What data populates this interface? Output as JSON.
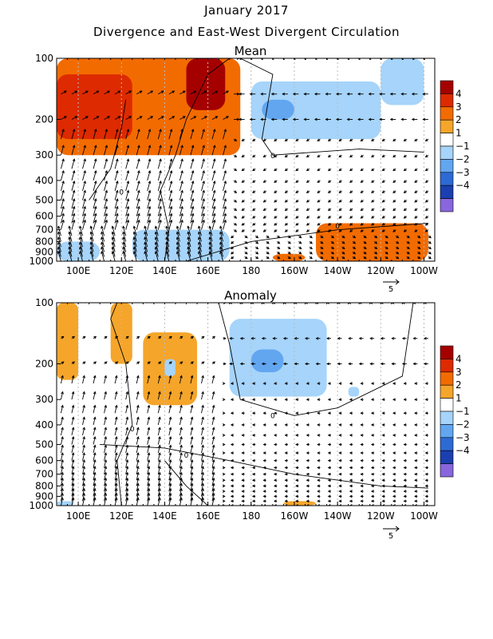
{
  "title": "January 2017",
  "subtitle": "Divergence and East-West Divergent Circulation",
  "colorbar": {
    "ticks": [
      "4",
      "3",
      "2",
      "1",
      "−1",
      "−2",
      "−3",
      "−4"
    ],
    "colors": [
      "#a50000",
      "#dd2a00",
      "#f26b00",
      "#f5a52a",
      "#ffffff",
      "#a6d4fa",
      "#62a6f0",
      "#2d6ad4",
      "#1b3fb0",
      "#8866dd"
    ]
  },
  "chart_data": [
    {
      "type": "heatmap",
      "title": "Mean",
      "x_ticks": [
        "100E",
        "120E",
        "140E",
        "160E",
        "180",
        "160W",
        "140W",
        "120W",
        "100W"
      ],
      "y_ticks": [
        "100",
        "200",
        "300",
        "400",
        "500",
        "600",
        "700",
        "800",
        "900",
        "1000"
      ],
      "x_range": [
        90,
        265
      ],
      "y_range": [
        1000,
        100
      ],
      "y_scale": "log-pressure",
      "reference_vector": "5",
      "contour_labels": [
        "0",
        "0",
        "0"
      ],
      "regions": [
        {
          "lon": [
            90,
            175
          ],
          "p": [
            100,
            300
          ],
          "value": 2.5
        },
        {
          "lon": [
            90,
            125
          ],
          "p": [
            120,
            250
          ],
          "value": 3.5
        },
        {
          "lon": [
            150,
            168
          ],
          "p": [
            100,
            180
          ],
          "value": 4
        },
        {
          "lon": [
            180,
            240
          ],
          "p": [
            130,
            250
          ],
          "value": -1.5
        },
        {
          "lon": [
            185,
            200
          ],
          "p": [
            160,
            200
          ],
          "value": -2.5
        },
        {
          "lon": [
            240,
            260
          ],
          "p": [
            100,
            170
          ],
          "value": -1.5
        },
        {
          "lon": [
            90,
            110
          ],
          "p": [
            800,
            1000
          ],
          "value": -2
        },
        {
          "lon": [
            125,
            170
          ],
          "p": [
            700,
            1000
          ],
          "value": -1.5
        },
        {
          "lon": [
            210,
            262
          ],
          "p": [
            650,
            1000
          ],
          "value": 2
        },
        {
          "lon": [
            190,
            205
          ],
          "p": [
            920,
            1000
          ],
          "value": 2
        }
      ]
    },
    {
      "type": "heatmap",
      "title": "Anomaly",
      "x_ticks": [
        "100E",
        "120E",
        "140E",
        "160E",
        "180",
        "160W",
        "140W",
        "120W",
        "100W"
      ],
      "y_ticks": [
        "100",
        "200",
        "300",
        "400",
        "500",
        "600",
        "700",
        "800",
        "900",
        "1000"
      ],
      "x_range": [
        90,
        265
      ],
      "y_range": [
        1000,
        100
      ],
      "y_scale": "log-pressure",
      "reference_vector": "5",
      "contour_labels": [
        "0",
        "0",
        "0"
      ],
      "regions": [
        {
          "lon": [
            90,
            100
          ],
          "p": [
            100,
            240
          ],
          "value": 1.5
        },
        {
          "lon": [
            115,
            125
          ],
          "p": [
            100,
            200
          ],
          "value": 1.5
        },
        {
          "lon": [
            130,
            155
          ],
          "p": [
            140,
            320
          ],
          "value": 1.5
        },
        {
          "lon": [
            170,
            215
          ],
          "p": [
            120,
            290
          ],
          "value": -1.5
        },
        {
          "lon": [
            180,
            195
          ],
          "p": [
            170,
            220
          ],
          "value": -2.5
        },
        {
          "lon": [
            140,
            145
          ],
          "p": [
            190,
            230
          ],
          "value": -1.5
        },
        {
          "lon": [
            225,
            230
          ],
          "p": [
            260,
            290
          ],
          "value": -1.5
        },
        {
          "lon": [
            195,
            210
          ],
          "p": [
            950,
            1000
          ],
          "value": 1.5
        },
        {
          "lon": [
            90,
            98
          ],
          "p": [
            950,
            1000
          ],
          "value": -1.5
        }
      ]
    }
  ]
}
